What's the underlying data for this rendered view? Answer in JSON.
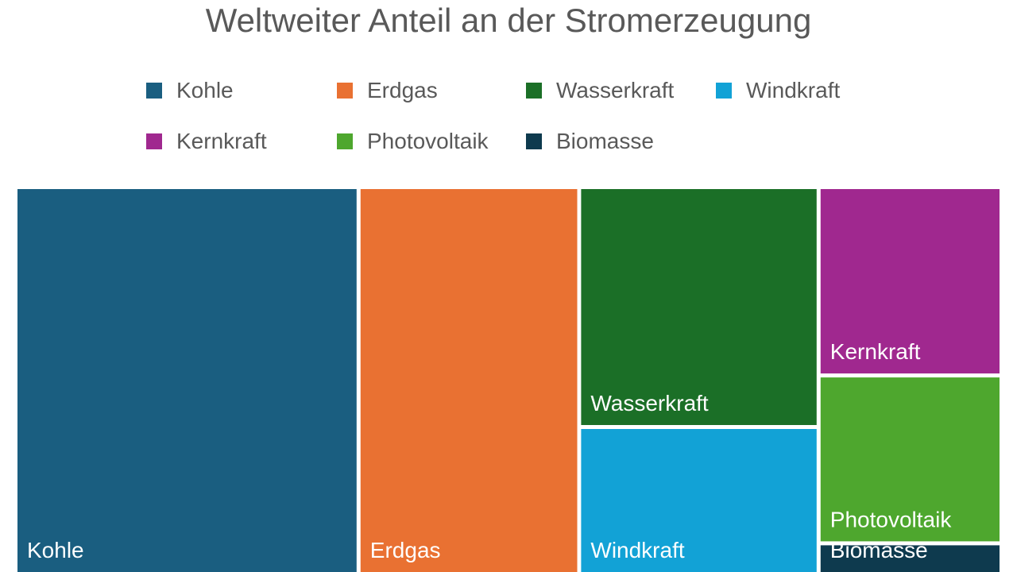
{
  "chart_data": {
    "type": "treemap",
    "title": "Weltweiter Anteil an der Stromerzeugung",
    "legend_position": "top",
    "series": [
      {
        "name": "Kohle",
        "value": 36,
        "color": "#1A5E80"
      },
      {
        "name": "Erdgas",
        "value": 23,
        "color": "#E97132"
      },
      {
        "name": "Wasserkraft",
        "value": 15,
        "color": "#1B6F27"
      },
      {
        "name": "Windkraft",
        "value": 10,
        "color": "#12A2D6"
      },
      {
        "name": "Kernkraft",
        "value": 9,
        "color": "#A0288F"
      },
      {
        "name": "Photovoltaik",
        "value": 8,
        "color": "#4EA72E"
      },
      {
        "name": "Biomasse",
        "value": 2,
        "color": "#0E3A4E"
      }
    ]
  }
}
